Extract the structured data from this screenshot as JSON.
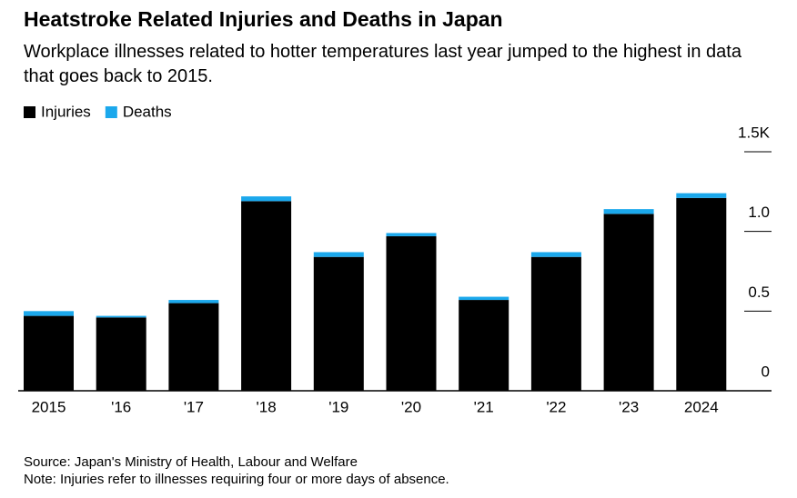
{
  "chart_data": {
    "type": "stacked_bar",
    "title": "Heatstroke Related Injuries and Deaths in Japan",
    "subtitle": "Workplace illnesses related to hotter temperatures last year jumped to the highest in data that goes back to 2015.",
    "categories": [
      "2015",
      "'16",
      "'17",
      "'18",
      "'19",
      "'20",
      "'21",
      "'22",
      "'23",
      "2024"
    ],
    "series": [
      {
        "name": "Injuries",
        "color": "#000000",
        "values": [
          0.47,
          0.46,
          0.55,
          1.19,
          0.84,
          0.97,
          0.57,
          0.84,
          1.11,
          1.21
        ]
      },
      {
        "name": "Deaths",
        "color": "#1ba8ec",
        "values": [
          0.03,
          0.01,
          0.02,
          0.03,
          0.03,
          0.02,
          0.02,
          0.03,
          0.03,
          0.03
        ]
      }
    ],
    "ylim": [
      0,
      1.5
    ],
    "yticks": [
      0,
      0.5,
      {
        "value": 1,
        "label": "1.0"
      },
      {
        "value": 1.5,
        "label": "1.5K"
      }
    ],
    "source": "Source: Japan's Ministry of Health, Labour and Welfare",
    "note": "Note: Injuries refer to illnesses requiring four or more days of absence."
  }
}
